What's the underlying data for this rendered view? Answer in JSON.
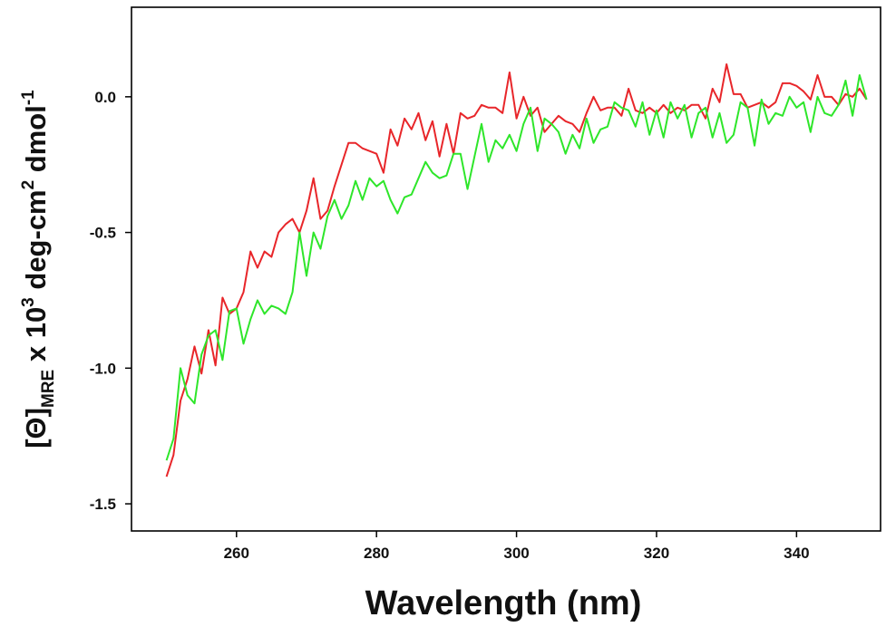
{
  "chart_data": {
    "type": "line",
    "xlabel": "Wavelength (nm)",
    "ylabel": {
      "prefix": "[Θ]",
      "subscript": "MRE",
      "part1": " x 10",
      "sup1": "3",
      "part2": " deg-cm",
      "sup2": "2",
      "part3": " dmol",
      "sup3": "-1"
    },
    "xlim": [
      245,
      352
    ],
    "ylim": [
      -1.6,
      0.33
    ],
    "xticks": [
      260,
      280,
      300,
      320,
      340
    ],
    "yticks": [
      0.0,
      -0.5,
      -1.0,
      -1.5
    ],
    "ytick_labels": [
      "0.0",
      "-0.5",
      "-1.0",
      "-1.5"
    ],
    "grid": false,
    "series": [
      {
        "color": "#e8262a",
        "x": [
          250,
          251,
          252,
          253,
          254,
          255,
          256,
          257,
          258,
          259,
          260,
          261,
          262,
          263,
          264,
          265,
          266,
          267,
          268,
          269,
          270,
          271,
          272,
          273,
          274,
          275,
          276,
          277,
          278,
          279,
          280,
          281,
          282,
          283,
          284,
          285,
          286,
          287,
          288,
          289,
          290,
          291,
          292,
          293,
          294,
          295,
          296,
          297,
          298,
          299,
          300,
          301,
          302,
          303,
          304,
          305,
          306,
          307,
          308,
          309,
          310,
          311,
          312,
          313,
          314,
          315,
          316,
          317,
          318,
          319,
          320,
          321,
          322,
          323,
          324,
          325,
          326,
          327,
          328,
          329,
          330,
          331,
          332,
          333,
          334,
          335,
          336,
          337,
          338,
          339,
          340,
          341,
          342,
          343,
          344,
          345,
          346,
          347,
          348,
          349,
          350
        ],
        "values": [
          -1.4,
          -1.32,
          -1.12,
          -1.04,
          -0.92,
          -1.02,
          -0.86,
          -0.99,
          -0.74,
          -0.8,
          -0.78,
          -0.72,
          -0.57,
          -0.63,
          -0.57,
          -0.59,
          -0.5,
          -0.47,
          -0.45,
          -0.5,
          -0.42,
          -0.3,
          -0.45,
          -0.42,
          -0.33,
          -0.25,
          -0.17,
          -0.17,
          -0.19,
          -0.2,
          -0.21,
          -0.28,
          -0.12,
          -0.18,
          -0.08,
          -0.12,
          -0.06,
          -0.16,
          -0.09,
          -0.22,
          -0.1,
          -0.21,
          -0.06,
          -0.08,
          -0.07,
          -0.03,
          -0.04,
          -0.04,
          -0.06,
          0.09,
          -0.08,
          0.0,
          -0.07,
          -0.04,
          -0.13,
          -0.1,
          -0.07,
          -0.09,
          -0.1,
          -0.13,
          -0.06,
          0.0,
          -0.05,
          -0.04,
          -0.04,
          -0.07,
          0.03,
          -0.05,
          -0.06,
          -0.04,
          -0.06,
          -0.03,
          -0.06,
          -0.04,
          -0.05,
          -0.03,
          -0.03,
          -0.08,
          0.03,
          -0.02,
          0.12,
          0.01,
          0.01,
          -0.04,
          -0.03,
          -0.02,
          -0.04,
          -0.02,
          0.05,
          0.05,
          0.04,
          0.02,
          -0.01,
          0.08,
          0.0,
          0.0,
          -0.03,
          0.01,
          0.0,
          0.03,
          -0.01
        ]
      },
      {
        "color": "#2ee62a",
        "x": [
          250,
          251,
          252,
          253,
          254,
          255,
          256,
          257,
          258,
          259,
          260,
          261,
          262,
          263,
          264,
          265,
          266,
          267,
          268,
          269,
          270,
          271,
          272,
          273,
          274,
          275,
          276,
          277,
          278,
          279,
          280,
          281,
          282,
          283,
          284,
          285,
          286,
          287,
          288,
          289,
          290,
          291,
          292,
          293,
          294,
          295,
          296,
          297,
          298,
          299,
          300,
          301,
          302,
          303,
          304,
          305,
          306,
          307,
          308,
          309,
          310,
          311,
          312,
          313,
          314,
          315,
          316,
          317,
          318,
          319,
          320,
          321,
          322,
          323,
          324,
          325,
          326,
          327,
          328,
          329,
          330,
          331,
          332,
          333,
          334,
          335,
          336,
          337,
          338,
          339,
          340,
          341,
          342,
          343,
          344,
          345,
          346,
          347,
          348,
          349,
          350
        ],
        "values": [
          -1.34,
          -1.26,
          -1.0,
          -1.1,
          -1.13,
          -0.95,
          -0.88,
          -0.86,
          -0.97,
          -0.79,
          -0.78,
          -0.91,
          -0.82,
          -0.75,
          -0.8,
          -0.77,
          -0.78,
          -0.8,
          -0.72,
          -0.5,
          -0.66,
          -0.5,
          -0.56,
          -0.44,
          -0.38,
          -0.45,
          -0.4,
          -0.31,
          -0.38,
          -0.3,
          -0.33,
          -0.31,
          -0.38,
          -0.43,
          -0.37,
          -0.36,
          -0.3,
          -0.24,
          -0.28,
          -0.3,
          -0.29,
          -0.21,
          -0.21,
          -0.34,
          -0.22,
          -0.1,
          -0.24,
          -0.16,
          -0.19,
          -0.14,
          -0.2,
          -0.1,
          -0.04,
          -0.2,
          -0.08,
          -0.1,
          -0.13,
          -0.21,
          -0.14,
          -0.19,
          -0.08,
          -0.17,
          -0.12,
          -0.11,
          -0.02,
          -0.04,
          -0.05,
          -0.11,
          -0.02,
          -0.14,
          -0.05,
          -0.15,
          -0.02,
          -0.08,
          -0.03,
          -0.15,
          -0.06,
          -0.04,
          -0.15,
          -0.06,
          -0.17,
          -0.14,
          -0.02,
          -0.04,
          -0.18,
          -0.01,
          -0.1,
          -0.06,
          -0.07,
          0.0,
          -0.04,
          -0.02,
          -0.13,
          0.0,
          -0.06,
          -0.07,
          -0.03,
          0.06,
          -0.07,
          0.08,
          -0.01
        ]
      }
    ]
  }
}
